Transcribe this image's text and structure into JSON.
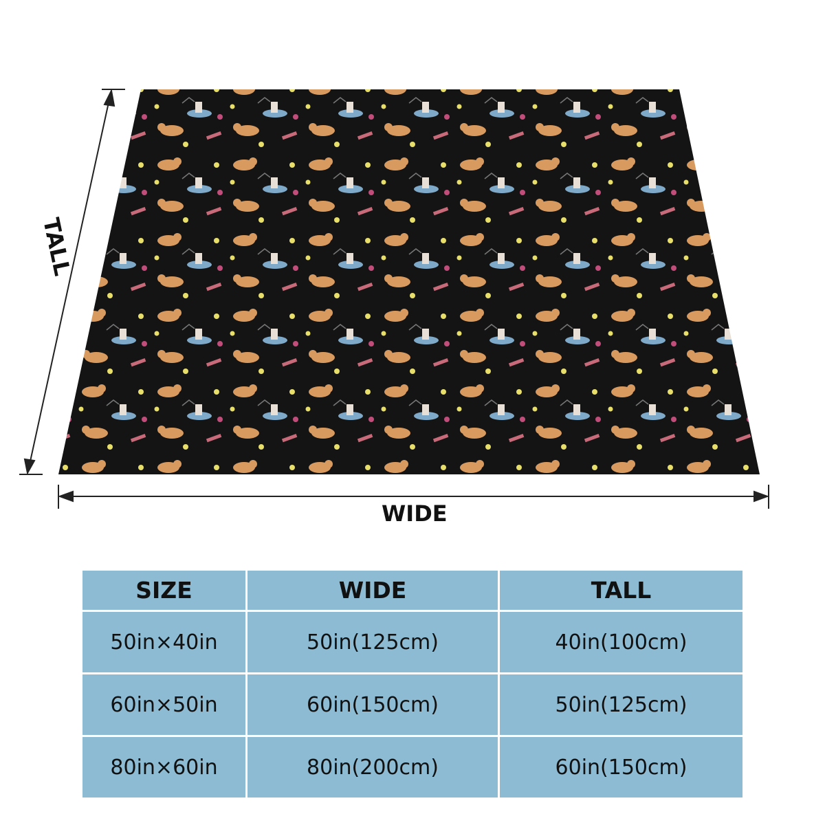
{
  "dimensions": {
    "tall_label": "TALL",
    "wide_label": "WIDE"
  },
  "blanket": {
    "background_color": "#141414",
    "pattern": "cats-stars-yarn"
  },
  "size_table": {
    "header_color": "#8cbbd3",
    "headers": [
      "SIZE",
      "WIDE",
      "TALL"
    ],
    "rows": [
      [
        "50in×40in",
        "50in(125cm)",
        "40in(100cm)"
      ],
      [
        "60in×50in",
        "60in(150cm)",
        "50in(125cm)"
      ],
      [
        "80in×60in",
        "80in(200cm)",
        "60in(150cm)"
      ]
    ]
  }
}
